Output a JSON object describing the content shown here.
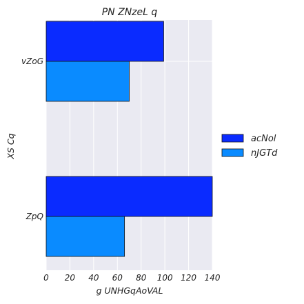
{
  "chart_data": {
    "type": "bar",
    "orientation": "horizontal",
    "title": "PN ZNzeL q",
    "xlabel": "g UNHGqAoVAL",
    "ylabel": "XS Cq",
    "categories": [
      "vZoG",
      "ZpQ"
    ],
    "series": [
      {
        "name": "acNol",
        "color": "#0A2BFF",
        "values": [
          99,
          140
        ]
      },
      {
        "name": "nJGTd",
        "color": "#0A8BFF",
        "values": [
          70,
          66
        ]
      }
    ],
    "xlim": [
      0,
      140
    ],
    "xticks": [
      "0",
      "20",
      "40",
      "60",
      "80",
      "100",
      "120",
      "140"
    ],
    "grid": true,
    "legend_position": "right",
    "plot_background": "#EAEAF2"
  }
}
